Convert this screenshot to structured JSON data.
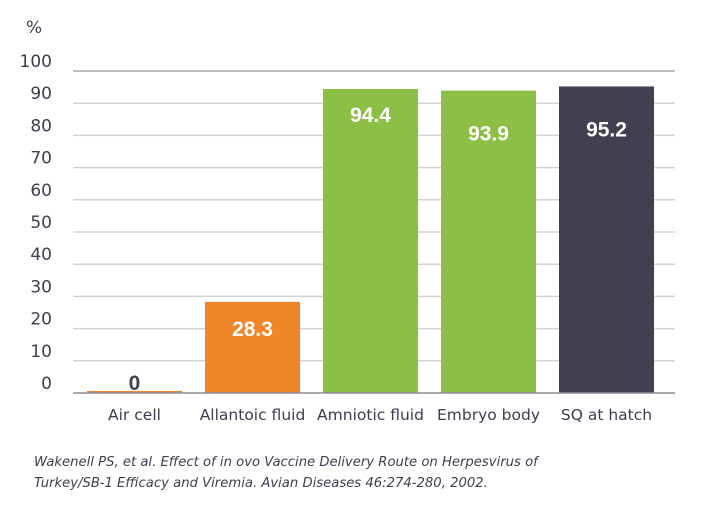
{
  "chart_data": {
    "type": "bar",
    "ylabel": "%",
    "ylim": [
      0,
      100
    ],
    "yticks": [
      0,
      10,
      20,
      30,
      40,
      50,
      60,
      70,
      80,
      90,
      100
    ],
    "grid": true,
    "categories": [
      "Air cell",
      "Allantoic fluid",
      "Amniotic fluid",
      "Embryo body",
      "SQ at hatch"
    ],
    "values": [
      0,
      28.3,
      94.4,
      93.9,
      95.2
    ],
    "data_labels": [
      "0",
      "28.3",
      "94.4",
      "93.9",
      "95.2"
    ],
    "colors": [
      "#f0852a",
      "#f0852a",
      "#8dbe45",
      "#8dbe45",
      "#433f50"
    ],
    "label_colors": [
      "#433f50",
      "#ffffff",
      "#ffffff",
      "#ffffff",
      "#ffffff"
    ]
  },
  "footnote": {
    "line1": "Wakenell PS, et al. Effect of in ovo Vaccine Delivery Route on Herpesvirus of",
    "line2": "Turkey/SB-1 Efficacy and Viremia. Avian Diseases 46:274-280, 2002."
  }
}
